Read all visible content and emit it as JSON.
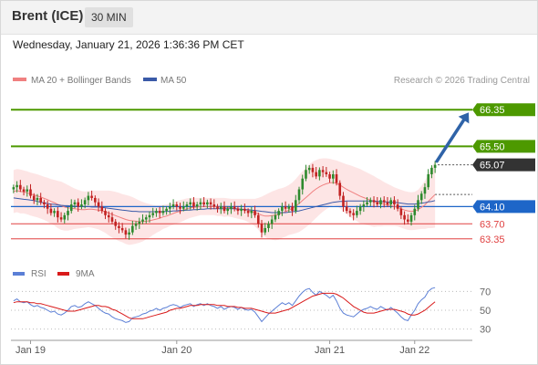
{
  "header": {
    "instrument": "Brent (ICE)",
    "timeframe": "30 MIN",
    "timestamp": "Wednesday, January 21, 2026 1:36:36 PM CET"
  },
  "legend": {
    "ma20_label": "MA 20 + Bollinger Bands",
    "ma50_label": "MA 50",
    "credit": "Research © 2026 Trading Central",
    "rsi_label": "RSI",
    "ma9_label": "9MA"
  },
  "colors": {
    "target": "#4d9900",
    "current": "#333333",
    "pivot": "#1e66c8",
    "support": "#e04040",
    "arrow": "#2f63a8",
    "up_candle": "#2d8a2d",
    "down_candle": "#c22222",
    "bollinger_fill": "#fde0e0",
    "ma20": "#f08080",
    "ma50": "#3a5aa8",
    "rsi": "#5b7fd6",
    "rsi_ma": "#d91a1a"
  },
  "chart_data": [
    {
      "type": "candlestick",
      "title": "Brent (ICE)",
      "x_ticks": [
        "Jan 19",
        "Jan 20",
        "Jan 21",
        "Jan 22"
      ],
      "y_range": [
        62.9,
        66.8
      ],
      "levels": [
        {
          "name": "resistance-2",
          "value": 66.35,
          "label": "66.35",
          "style": "target"
        },
        {
          "name": "resistance-1",
          "value": 65.5,
          "label": "65.50",
          "style": "target"
        },
        {
          "name": "last-price",
          "value": 65.07,
          "label": "65.07",
          "style": "current"
        },
        {
          "name": "pivot",
          "value": 64.1,
          "label": "64.10",
          "style": "pivot"
        },
        {
          "name": "support-1",
          "value": 63.7,
          "label": "63.70",
          "style": "support"
        },
        {
          "name": "support-2",
          "value": 63.35,
          "label": "63.35",
          "style": "support"
        }
      ],
      "arrow": {
        "from": 65.07,
        "to": 66.35,
        "direction": "up"
      },
      "close": [
        64.55,
        64.6,
        64.5,
        64.45,
        64.5,
        64.35,
        64.25,
        64.3,
        64.2,
        64.15,
        64.05,
        63.95,
        64.0,
        63.85,
        63.8,
        63.9,
        64.0,
        64.15,
        64.2,
        64.1,
        64.15,
        64.25,
        64.35,
        64.3,
        64.2,
        64.1,
        64.0,
        63.9,
        63.85,
        63.75,
        63.65,
        63.6,
        63.55,
        63.45,
        63.5,
        63.65,
        63.7,
        63.75,
        63.8,
        63.85,
        63.9,
        63.95,
        64.0,
        63.95,
        64.0,
        64.05,
        64.1,
        64.15,
        64.1,
        64.05,
        64.1,
        64.15,
        64.2,
        64.1,
        64.15,
        64.2,
        64.15,
        64.2,
        64.15,
        64.1,
        64.05,
        64.1,
        64.0,
        64.05,
        64.1,
        64.05,
        64.0,
        64.05,
        64.0,
        63.95,
        64.0,
        63.9,
        63.7,
        63.5,
        63.6,
        63.7,
        63.8,
        63.9,
        64.0,
        64.1,
        64.05,
        64.1,
        64.0,
        64.25,
        64.5,
        64.75,
        64.95,
        65.0,
        64.9,
        64.8,
        64.95,
        64.9,
        64.85,
        64.75,
        64.85,
        64.65,
        64.35,
        64.1,
        64.0,
        63.95,
        63.9,
        64.0,
        64.1,
        64.15,
        64.2,
        64.25,
        64.2,
        64.15,
        64.25,
        64.2,
        64.15,
        64.25,
        64.15,
        64.05,
        63.9,
        63.8,
        63.75,
        63.9,
        64.05,
        64.25,
        64.4,
        64.55,
        64.85,
        65.0,
        65.07
      ],
      "ma20": [
        64.45,
        64.47,
        64.45,
        64.44,
        64.42,
        64.39,
        64.37,
        64.35,
        64.32,
        64.29,
        64.26,
        64.22,
        64.19,
        64.15,
        64.12,
        64.09,
        64.07,
        64.06,
        64.05,
        64.04,
        64.03,
        64.03,
        64.04,
        64.04,
        64.03,
        64.02,
        64.0,
        63.98,
        63.95,
        63.92,
        63.89,
        63.86,
        63.83,
        63.8,
        63.78,
        63.77,
        63.76,
        63.75,
        63.75,
        63.76,
        63.77,
        63.79,
        63.81,
        63.83,
        63.86,
        63.88,
        63.91,
        63.94,
        63.97,
        63.99,
        64.02,
        64.05,
        64.07,
        64.08,
        64.09,
        64.1,
        64.1,
        64.1,
        64.1,
        64.1,
        64.09,
        64.09,
        64.08,
        64.08,
        64.07,
        64.06,
        64.05,
        64.04,
        64.03,
        64.01,
        63.99,
        63.96,
        63.93,
        63.9,
        63.88,
        63.88,
        63.89,
        63.9,
        63.92,
        63.95,
        63.98,
        64.02,
        64.06,
        64.11,
        64.17,
        64.24,
        64.31,
        64.38,
        64.45,
        64.51,
        64.56,
        64.6,
        64.63,
        64.65,
        64.66,
        64.64,
        64.6,
        64.55,
        64.5,
        64.46,
        64.42,
        64.38,
        64.34,
        64.31,
        64.28,
        64.25,
        64.22,
        64.2,
        64.18,
        64.16,
        64.14,
        64.12,
        64.1,
        64.08,
        64.05,
        64.02,
        64.0,
        63.99,
        64.0,
        64.03,
        64.08,
        64.14,
        64.22,
        64.3,
        64.38
      ],
      "bb_upper": [
        64.95,
        64.97,
        64.96,
        64.94,
        64.92,
        64.89,
        64.87,
        64.85,
        64.82,
        64.79,
        64.77,
        64.74,
        64.72,
        64.7,
        64.68,
        64.64,
        64.6,
        64.56,
        64.52,
        64.49,
        64.46,
        64.45,
        64.46,
        64.47,
        64.47,
        64.47,
        64.47,
        64.47,
        64.47,
        64.46,
        64.44,
        64.42,
        64.39,
        64.37,
        64.35,
        64.32,
        64.28,
        64.24,
        64.21,
        64.18,
        64.16,
        64.14,
        64.13,
        64.13,
        64.14,
        64.15,
        64.17,
        64.2,
        64.23,
        64.25,
        64.27,
        64.29,
        64.3,
        64.3,
        64.3,
        64.3,
        64.3,
        64.3,
        64.3,
        64.3,
        64.3,
        64.3,
        64.3,
        64.29,
        64.28,
        64.28,
        64.28,
        64.28,
        64.28,
        64.28,
        64.28,
        64.28,
        64.3,
        64.33,
        64.37,
        64.41,
        64.45,
        64.48,
        64.51,
        64.53,
        64.56,
        64.6,
        64.66,
        64.74,
        64.83,
        64.92,
        65.0,
        65.08,
        65.14,
        65.18,
        65.21,
        65.22,
        65.22,
        65.21,
        65.19,
        65.17,
        65.14,
        65.11,
        65.08,
        65.06,
        65.03,
        65.0,
        64.97,
        64.93,
        64.89,
        64.85,
        64.81,
        64.76,
        64.72,
        64.67,
        64.63,
        64.59,
        64.55,
        64.52,
        64.49,
        64.46,
        64.44,
        64.43,
        64.44,
        64.49,
        64.58,
        64.7,
        64.84,
        65.0,
        65.15
      ],
      "bb_lower": [
        63.95,
        63.97,
        63.94,
        63.94,
        63.92,
        63.89,
        63.87,
        63.85,
        63.82,
        63.79,
        63.75,
        63.7,
        63.66,
        63.6,
        63.56,
        63.54,
        63.54,
        63.56,
        63.58,
        63.59,
        63.6,
        63.61,
        63.62,
        63.61,
        63.59,
        63.57,
        63.53,
        63.49,
        63.43,
        63.38,
        63.34,
        63.3,
        63.27,
        63.23,
        63.21,
        63.22,
        63.24,
        63.26,
        63.29,
        63.34,
        63.38,
        63.44,
        63.49,
        63.53,
        63.58,
        63.61,
        63.65,
        63.68,
        63.71,
        63.73,
        63.77,
        63.81,
        63.84,
        63.86,
        63.88,
        63.9,
        63.9,
        63.9,
        63.9,
        63.9,
        63.88,
        63.88,
        63.86,
        63.87,
        63.86,
        63.84,
        63.82,
        63.8,
        63.78,
        63.74,
        63.7,
        63.64,
        63.56,
        63.47,
        63.39,
        63.35,
        63.33,
        63.32,
        63.33,
        63.37,
        63.4,
        63.44,
        63.46,
        63.48,
        63.51,
        63.56,
        63.62,
        63.68,
        63.76,
        63.84,
        63.91,
        63.98,
        64.04,
        64.09,
        64.13,
        64.11,
        64.06,
        63.99,
        63.92,
        63.86,
        63.81,
        63.76,
        63.71,
        63.69,
        63.67,
        63.65,
        63.63,
        63.64,
        63.64,
        63.65,
        63.65,
        63.65,
        63.65,
        63.64,
        63.61,
        63.58,
        63.56,
        63.55,
        63.56,
        63.57,
        63.58,
        63.58,
        63.6,
        63.6,
        63.61
      ],
      "ma50": [
        64.3,
        64.29,
        64.28,
        64.27,
        64.26,
        64.25,
        64.24,
        64.22,
        64.2,
        64.19,
        64.17,
        64.16,
        64.15,
        64.14,
        64.13,
        64.12,
        64.12,
        64.11,
        64.11,
        64.1,
        64.1,
        64.1,
        64.1,
        64.09,
        64.09,
        64.09,
        64.08,
        64.07,
        64.06,
        64.05,
        64.04,
        64.03,
        64.02,
        64.01,
        64.0,
        63.99,
        63.99,
        63.98,
        63.98,
        63.98,
        63.98,
        63.98,
        63.98,
        63.98,
        63.98,
        63.99,
        63.99,
        64.0,
        64.0,
        64.01,
        64.01,
        64.02,
        64.02,
        64.03,
        64.03,
        64.04,
        64.04,
        64.05,
        64.05,
        64.05,
        64.05,
        64.05,
        64.05,
        64.05,
        64.05,
        64.05,
        64.04,
        64.04,
        64.03,
        64.03,
        64.02,
        64.01,
        64.0,
        63.99,
        63.98,
        63.97,
        63.96,
        63.96,
        63.96,
        63.96,
        63.96,
        63.97,
        63.98,
        63.99,
        64.0,
        64.02,
        64.04,
        64.06,
        64.08,
        64.1,
        64.12,
        64.14,
        64.16,
        64.18,
        64.2,
        64.21,
        64.22,
        64.22,
        64.23,
        64.23,
        64.23,
        64.23,
        64.23,
        64.23,
        64.23,
        64.23,
        64.23,
        64.22,
        64.22,
        64.21,
        64.21,
        64.2,
        64.2,
        64.19,
        64.18,
        64.17,
        64.16,
        64.16,
        64.16,
        64.17,
        64.18,
        64.19,
        64.21,
        64.22,
        64.24
      ]
    },
    {
      "type": "line",
      "title": "RSI",
      "y_ticks": [
        70,
        50,
        30
      ],
      "y_range": [
        20,
        80
      ],
      "series": [
        {
          "name": "RSI",
          "values": [
            60,
            62,
            59,
            58,
            59,
            56,
            54,
            55,
            53,
            52,
            50,
            48,
            49,
            46,
            45,
            47,
            50,
            54,
            55,
            53,
            54,
            57,
            59,
            57,
            55,
            52,
            49,
            47,
            46,
            43,
            41,
            40,
            39,
            37,
            38,
            42,
            43,
            44,
            46,
            47,
            49,
            50,
            52,
            50,
            52,
            53,
            55,
            56,
            55,
            53,
            55,
            56,
            57,
            54,
            56,
            57,
            55,
            57,
            55,
            54,
            52,
            54,
            51,
            53,
            54,
            53,
            51,
            53,
            51,
            50,
            51,
            48,
            43,
            38,
            42,
            46,
            49,
            52,
            55,
            58,
            56,
            58,
            55,
            60,
            65,
            69,
            72,
            73,
            69,
            66,
            70,
            68,
            66,
            63,
            66,
            60,
            52,
            47,
            45,
            44,
            43,
            46,
            49,
            51,
            52,
            54,
            52,
            51,
            54,
            52,
            50,
            53,
            50,
            47,
            43,
            40,
            39,
            45,
            50,
            57,
            61,
            64,
            70,
            73,
            74
          ]
        },
        {
          "name": "9MA",
          "values": [
            58,
            59,
            59,
            59,
            59,
            58,
            58,
            57,
            57,
            56,
            55,
            54,
            53,
            52,
            51,
            50,
            49,
            49,
            49,
            50,
            51,
            52,
            53,
            54,
            55,
            55,
            54,
            54,
            53,
            51,
            50,
            48,
            46,
            44,
            42,
            41,
            41,
            41,
            41,
            42,
            43,
            44,
            45,
            46,
            47,
            48,
            50,
            51,
            52,
            52,
            53,
            54,
            55,
            55,
            55,
            56,
            56,
            56,
            56,
            56,
            55,
            55,
            55,
            54,
            54,
            54,
            53,
            53,
            52,
            52,
            52,
            51,
            50,
            49,
            48,
            47,
            47,
            47,
            48,
            49,
            50,
            51,
            53,
            55,
            57,
            59,
            61,
            63,
            65,
            66,
            67,
            68,
            68,
            68,
            68,
            67,
            65,
            63,
            60,
            57,
            54,
            52,
            50,
            48,
            47,
            47,
            47,
            48,
            49,
            50,
            51,
            51,
            51,
            50,
            49,
            48,
            46,
            45,
            45,
            46,
            48,
            50,
            53,
            56,
            59
          ]
        }
      ]
    }
  ]
}
